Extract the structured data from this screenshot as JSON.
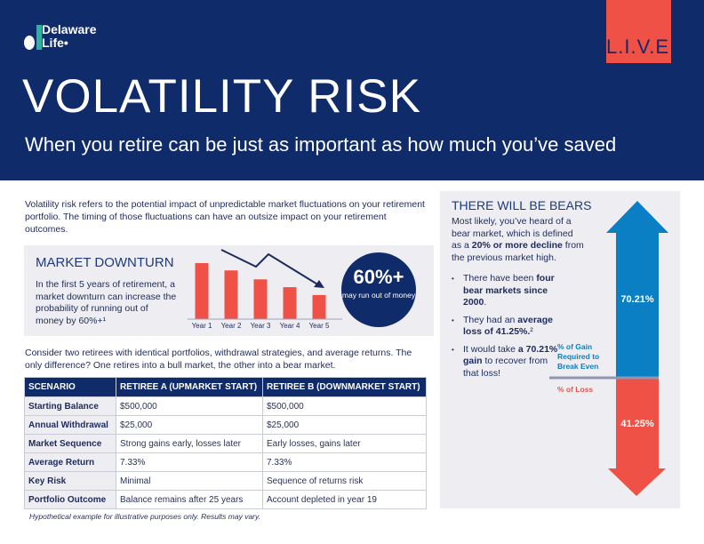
{
  "header": {
    "logo": {
      "line1": "Delaware",
      "line2": "Life"
    },
    "badge": "L.I.V.E.",
    "title": "VOLATILITY RISK",
    "subtitle": "When you retire can be just as important as how much you’ve saved"
  },
  "intro": "Volatility risk refers to the potential impact of unpredictable market fluctuations on your retirement portfolio. The timing of those fluctuations can have an outsize impact on your retirement outcomes.",
  "downturn": {
    "title": "MARKET DOWNTURN",
    "text": "In the first 5 years of retirement, a market downturn can increase the probability of running out of money by 60%+¹",
    "stat": "60%+",
    "stat_caption": "may run out of money"
  },
  "chart_data": {
    "type": "bar",
    "categories": [
      "Year 1",
      "Year 2",
      "Year 3",
      "Year 4",
      "Year 5"
    ],
    "relative_values": [
      100,
      87,
      71,
      57,
      43
    ],
    "trend": "downward",
    "bar_color": "#ef5147",
    "trend_color": "#1d2a5c"
  },
  "compare": "Consider two retirees with identical portfolios, withdrawal strategies, and average returns. The only difference? One retires into a bull market, the other into a bear market.",
  "table": {
    "headers": [
      "SCENARIO",
      "RETIREE A (UPMARKET START)",
      "RETIREE B (DOWNMARKET START)"
    ],
    "rows": [
      [
        "Starting Balance",
        "$500,000",
        "$500,000"
      ],
      [
        "Annual Withdrawal",
        "$25,000",
        "$25,000"
      ],
      [
        "Market Sequence",
        "Strong gains early, losses later",
        "Early losses, gains later"
      ],
      [
        "Average Return",
        "7.33%",
        "7.33%"
      ],
      [
        "Key Risk",
        "Minimal",
        "Sequence of returns risk"
      ],
      [
        "Portfolio Outcome",
        "Balance remains after 25 years",
        "Account depleted in year 19"
      ]
    ]
  },
  "footnote": "Hypothetical example for illustrative purposes only. Results may vary.",
  "bears": {
    "title": "THERE WILL BE BEARS",
    "text_pre": "Most likely, you’ve heard of a bear market, which is defined as a ",
    "text_bold": "20% or more decline",
    "text_post": " from the previous market high.",
    "bullets": [
      {
        "pre": "There have been ",
        "bold": "four bear markets since 2000",
        "post": "."
      },
      {
        "pre": "They had an ",
        "bold": "average loss of 41.25%.",
        "post": "²"
      },
      {
        "pre": "It would take ",
        "bold": "a 70.21% gain",
        "post": " to recover from that loss!"
      }
    ],
    "gain_value": "70.21%",
    "loss_value": "41.25%",
    "gain_label": "% of Gain Required to Break Even",
    "loss_label": "% of Loss",
    "gain_color": "#0a7fc4",
    "loss_color": "#ef5147"
  }
}
